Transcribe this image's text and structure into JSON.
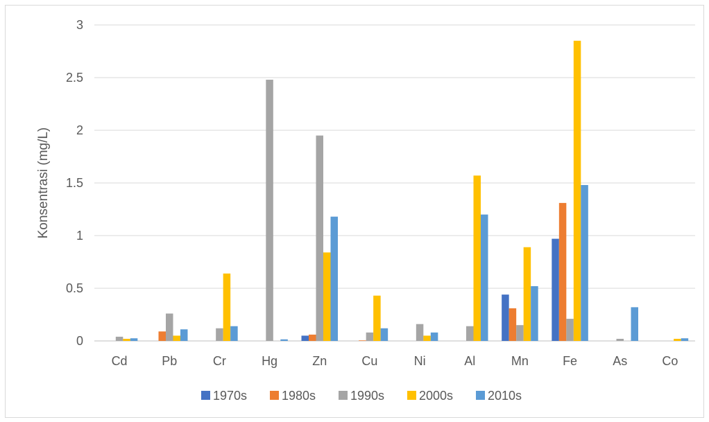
{
  "chart_data": {
    "type": "bar",
    "title": "",
    "xlabel": "",
    "ylabel": "Konsentrasi (mg/L)",
    "ylim": [
      0,
      3
    ],
    "yticks": [
      "0",
      "0.5",
      "1",
      "1.5",
      "2",
      "2.5",
      "3"
    ],
    "grid": true,
    "legend_position": "bottom",
    "categories": [
      "Cd",
      "Pb",
      "Cr",
      "Hg",
      "Zn",
      "Cu",
      "Ni",
      "Al",
      "Mn",
      "Fe",
      "As",
      "Co"
    ],
    "series": [
      {
        "name": "1970s",
        "color": "#4472c4",
        "values": [
          0,
          0,
          0,
          0,
          0.05,
          0,
          0,
          0,
          0.44,
          0.97,
          0,
          0
        ]
      },
      {
        "name": "1980s",
        "color": "#ed7d31",
        "values": [
          0,
          0.09,
          0,
          0,
          0.06,
          0.005,
          0,
          0,
          0.31,
          1.31,
          0,
          0
        ]
      },
      {
        "name": "1990s",
        "color": "#a5a5a5",
        "values": [
          0.04,
          0.26,
          0.12,
          2.48,
          1.95,
          0.08,
          0.16,
          0.14,
          0.15,
          0.21,
          0.02,
          0
        ]
      },
      {
        "name": "2000s",
        "color": "#ffc000",
        "values": [
          0.02,
          0.05,
          0.64,
          0,
          0.84,
          0.43,
          0.05,
          1.57,
          0.89,
          2.85,
          0,
          0.02
        ]
      },
      {
        "name": "2010s",
        "color": "#5b9bd5",
        "values": [
          0.025,
          0.11,
          0.14,
          0.015,
          1.18,
          0.12,
          0.08,
          1.2,
          0.52,
          1.48,
          0.32,
          0.025
        ]
      }
    ]
  }
}
